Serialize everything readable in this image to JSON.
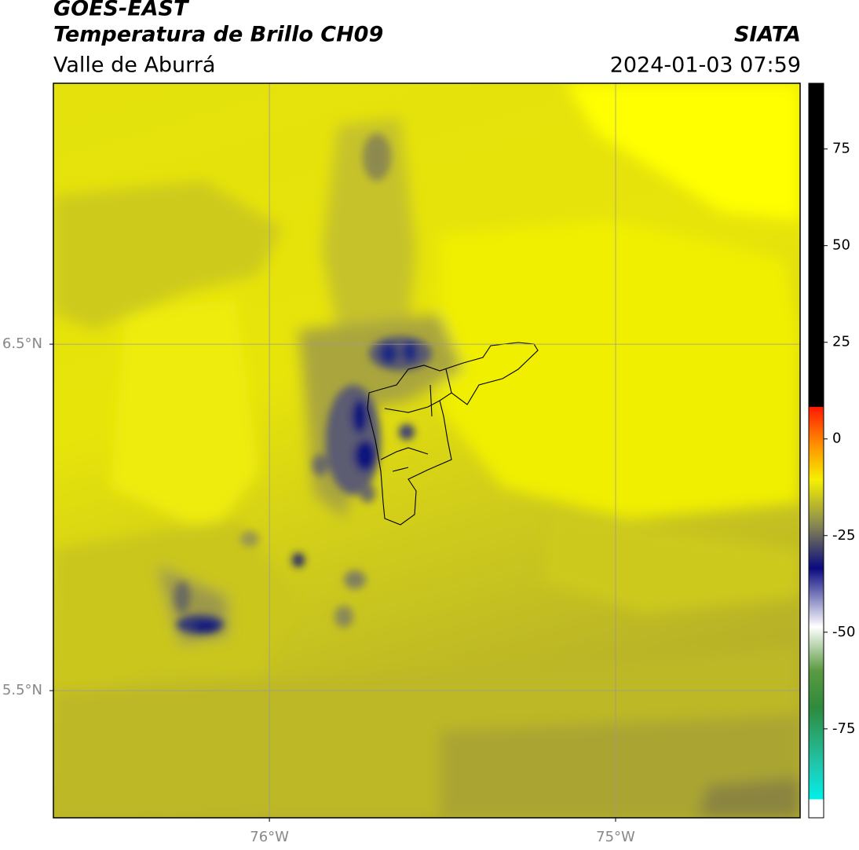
{
  "header": {
    "title": "GOES-EAST",
    "subtitle": "Temperatura de Brillo CH09",
    "region": "Valle de Aburrá",
    "source": "SIATA",
    "timestamp": "2024-01-03 07:59"
  },
  "map": {
    "xlim": [
      -76.624,
      -74.467
    ],
    "ylim": [
      5.133,
      7.253
    ],
    "xticks": [
      {
        "value": -76,
        "label": "76°W"
      },
      {
        "value": -75,
        "label": "75°W"
      }
    ],
    "yticks": [
      {
        "value": 6.5,
        "label": "6.5°N"
      },
      {
        "value": 5.5,
        "label": "5.5°N"
      }
    ],
    "grid": true
  },
  "colorbar": {
    "lim": [
      -98,
      92
    ],
    "ticks": [
      75,
      50,
      25,
      0,
      -25,
      -50,
      -75
    ]
  }
}
